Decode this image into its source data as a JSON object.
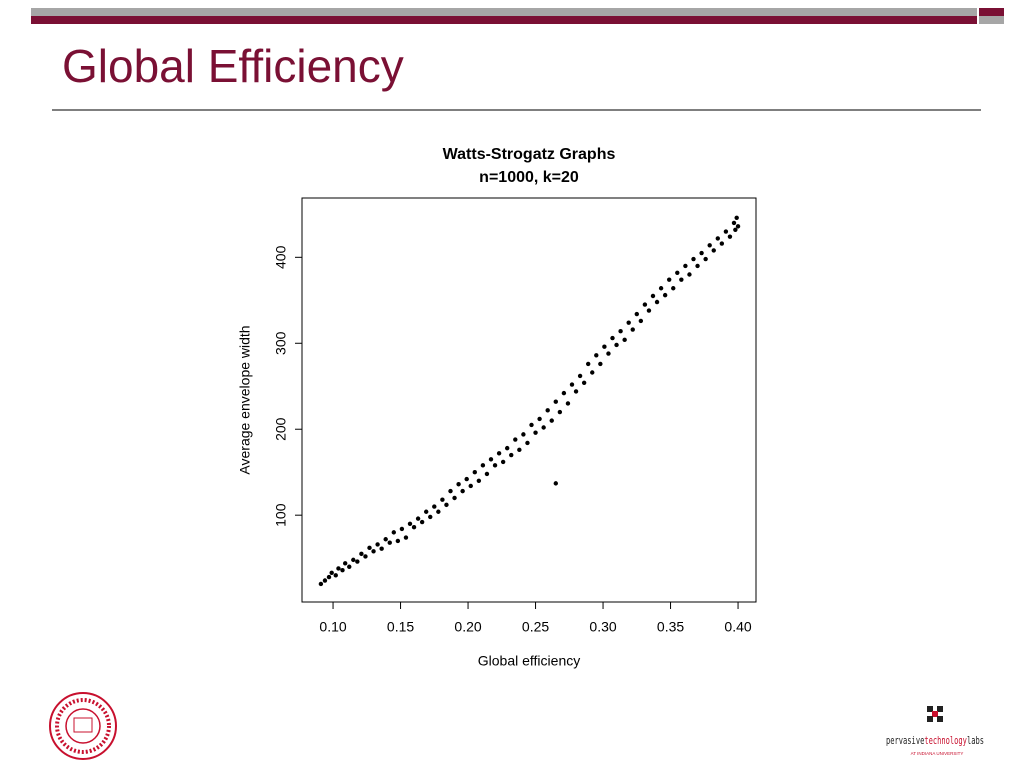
{
  "slide_title": "Global Efficiency",
  "logo": {
    "part1": "pervasive",
    "part2": "technology",
    "part3": "labs",
    "sub": "AT INDIANA UNIVERSITY"
  },
  "chart_data": {
    "type": "scatter",
    "title": "Watts-Strogatz Graphs",
    "subtitle": "n=1000, k=20",
    "x_label": "Global efficiency",
    "y_label": "Average envelope width",
    "color": "#000000",
    "x": [
      0.091,
      0.094,
      0.097,
      0.099,
      0.102,
      0.104,
      0.107,
      0.109,
      0.112,
      0.115,
      0.118,
      0.121,
      0.124,
      0.127,
      0.13,
      0.133,
      0.136,
      0.139,
      0.142,
      0.145,
      0.148,
      0.151,
      0.154,
      0.157,
      0.16,
      0.163,
      0.166,
      0.169,
      0.172,
      0.175,
      0.178,
      0.181,
      0.184,
      0.187,
      0.19,
      0.193,
      0.196,
      0.199,
      0.202,
      0.205,
      0.208,
      0.211,
      0.214,
      0.217,
      0.22,
      0.223,
      0.226,
      0.229,
      0.232,
      0.235,
      0.238,
      0.241,
      0.244,
      0.247,
      0.25,
      0.253,
      0.256,
      0.259,
      0.262,
      0.265,
      0.268,
      0.271,
      0.274,
      0.277,
      0.28,
      0.283,
      0.286,
      0.289,
      0.292,
      0.295,
      0.298,
      0.301,
      0.304,
      0.307,
      0.31,
      0.313,
      0.316,
      0.319,
      0.322,
      0.325,
      0.328,
      0.331,
      0.334,
      0.337,
      0.34,
      0.343,
      0.346,
      0.349,
      0.352,
      0.355,
      0.358,
      0.361,
      0.364,
      0.367,
      0.37,
      0.373,
      0.376,
      0.379,
      0.382,
      0.385,
      0.388,
      0.391,
      0.394,
      0.397,
      0.399,
      0.4,
      0.398,
      0.265
    ],
    "values": [
      20,
      24,
      28,
      33,
      30,
      38,
      36,
      44,
      40,
      48,
      46,
      55,
      52,
      62,
      58,
      66,
      61,
      72,
      68,
      80,
      70,
      84,
      74,
      90,
      86,
      96,
      92,
      104,
      98,
      110,
      104,
      118,
      112,
      128,
      120,
      136,
      128,
      142,
      134,
      150,
      140,
      158,
      148,
      165,
      158,
      172,
      162,
      178,
      170,
      188,
      176,
      194,
      184,
      205,
      196,
      212,
      202,
      222,
      210,
      232,
      220,
      242,
      230,
      252,
      244,
      262,
      254,
      276,
      266,
      286,
      276,
      296,
      288,
      306,
      298,
      314,
      304,
      324,
      316,
      334,
      326,
      345,
      338,
      355,
      348,
      364,
      356,
      374,
      364,
      382,
      374,
      390,
      380,
      398,
      390,
      405,
      398,
      414,
      408,
      422,
      416,
      430,
      424,
      440,
      446,
      436,
      432,
      137
    ],
    "xlim": [
      0.077,
      0.4133
    ],
    "ylim": [
      -1,
      469
    ],
    "xticks": [
      {
        "value": 0.1,
        "label": "0.10"
      },
      {
        "value": 0.15,
        "label": "0.15"
      },
      {
        "value": 0.2,
        "label": "0.20"
      },
      {
        "value": 0.25,
        "label": "0.25"
      },
      {
        "value": 0.3,
        "label": "0.30"
      },
      {
        "value": 0.35,
        "label": "0.35"
      },
      {
        "value": 0.4,
        "label": "0.40"
      }
    ],
    "yticks": [
      100,
      200,
      300,
      400
    ]
  }
}
